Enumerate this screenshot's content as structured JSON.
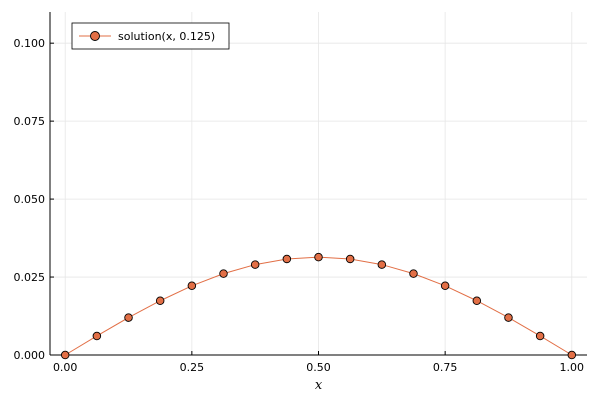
{
  "chart_data": {
    "type": "line",
    "xlabel": "x",
    "ylabel": "",
    "xlim": [
      -0.03,
      1.03
    ],
    "ylim": [
      0,
      0.11
    ],
    "grid": true,
    "legend_position": "top-left",
    "x_ticks": [
      0.0,
      0.25,
      0.5,
      0.75,
      1.0
    ],
    "x_tick_labels": [
      "0.00",
      "0.25",
      "0.50",
      "0.75",
      "1.00"
    ],
    "y_ticks": [
      0.0,
      0.025,
      0.05,
      0.075,
      0.1
    ],
    "y_tick_labels": [
      "0.000",
      "0.025",
      "0.050",
      "0.075",
      "0.100"
    ],
    "series": [
      {
        "name": "solution(x, 0.125)",
        "color": "#e26f46",
        "marker": "circle",
        "x": [
          0.0,
          0.0625,
          0.125,
          0.1875,
          0.25,
          0.3125,
          0.375,
          0.4375,
          0.5,
          0.5625,
          0.625,
          0.6875,
          0.75,
          0.8125,
          0.875,
          0.9375,
          1.0
        ],
        "y": [
          0.0,
          0.0061,
          0.012,
          0.0174,
          0.0222,
          0.0261,
          0.029,
          0.0308,
          0.0314,
          0.0308,
          0.029,
          0.0261,
          0.0222,
          0.0174,
          0.012,
          0.0061,
          0.0
        ]
      }
    ]
  }
}
